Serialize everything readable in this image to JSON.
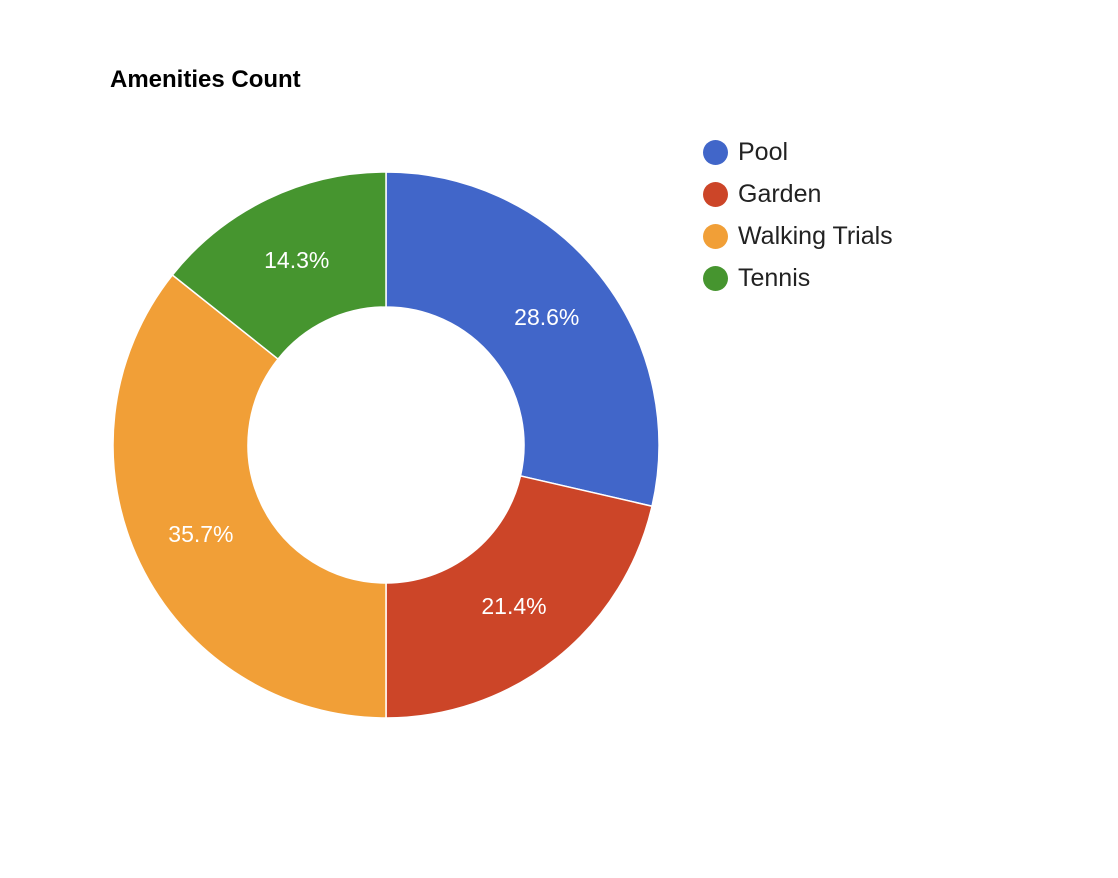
{
  "chart_data": {
    "type": "pie",
    "title": "Amenities Count",
    "donut": true,
    "categories": [
      "Pool",
      "Garden",
      "Walking Trials",
      "Tennis"
    ],
    "values": [
      28.6,
      21.4,
      35.7,
      14.3
    ],
    "slice_labels": [
      "28.6%",
      "21.4%",
      "35.7%",
      "14.3%"
    ],
    "colors": [
      "#4166c9",
      "#cc4528",
      "#f19f37",
      "#46952f"
    ],
    "legend": "right",
    "start_angle": "top",
    "direction": "clockwise"
  }
}
